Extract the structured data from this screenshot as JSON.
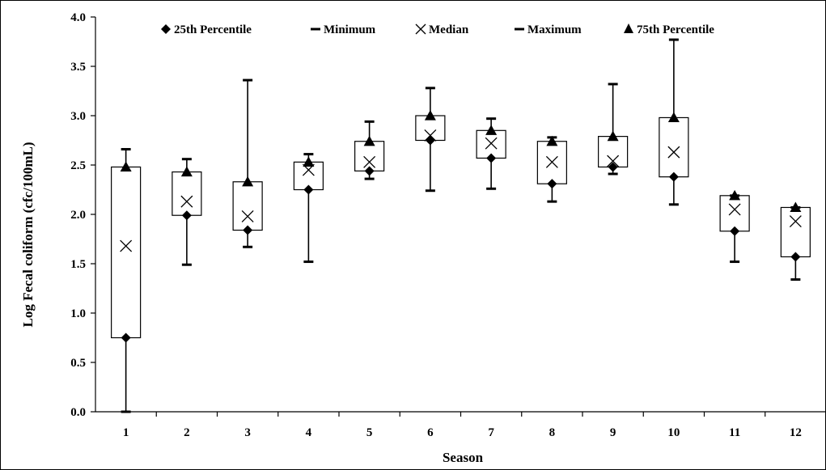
{
  "chart_data": {
    "type": "box",
    "xlabel": "Season",
    "ylabel": "Log Fecal coliform  (cfc/100mL)",
    "ylim": [
      0,
      4
    ],
    "yticks": [
      "0.0",
      "0.5",
      "1.0",
      "1.5",
      "2.0",
      "2.5",
      "3.0",
      "3.5",
      "4.0"
    ],
    "categories": [
      "1",
      "2",
      "3",
      "4",
      "5",
      "6",
      "7",
      "8",
      "9",
      "10",
      "11",
      "12"
    ],
    "legend": {
      "position": "top",
      "items": [
        {
          "marker": "diamond",
          "label": "25th Percentile"
        },
        {
          "marker": "dash",
          "label": "Minimum"
        },
        {
          "marker": "x",
          "label": "Median"
        },
        {
          "marker": "dash",
          "label": "Maximum"
        },
        {
          "marker": "triangle",
          "label": "75th Percentile"
        }
      ]
    },
    "series": [
      {
        "name": "Minimum",
        "values": [
          0.0,
          1.49,
          1.67,
          1.52,
          2.36,
          2.24,
          2.26,
          2.13,
          2.41,
          2.1,
          1.52,
          1.34
        ]
      },
      {
        "name": "25th Percentile",
        "values": [
          0.75,
          1.99,
          1.84,
          2.25,
          2.44,
          2.75,
          2.57,
          2.31,
          2.48,
          2.38,
          1.83,
          1.57
        ]
      },
      {
        "name": "Median",
        "values": [
          1.68,
          2.13,
          1.98,
          2.45,
          2.53,
          2.8,
          2.72,
          2.53,
          2.54,
          2.63,
          2.05,
          1.93
        ]
      },
      {
        "name": "75th Percentile",
        "values": [
          2.48,
          2.43,
          2.33,
          2.53,
          2.74,
          3.0,
          2.85,
          2.74,
          2.79,
          2.98,
          2.19,
          2.07
        ]
      },
      {
        "name": "Maximum",
        "values": [
          2.66,
          2.56,
          3.36,
          2.61,
          2.94,
          3.28,
          2.97,
          2.78,
          3.32,
          3.77,
          2.19,
          2.07
        ]
      }
    ]
  }
}
